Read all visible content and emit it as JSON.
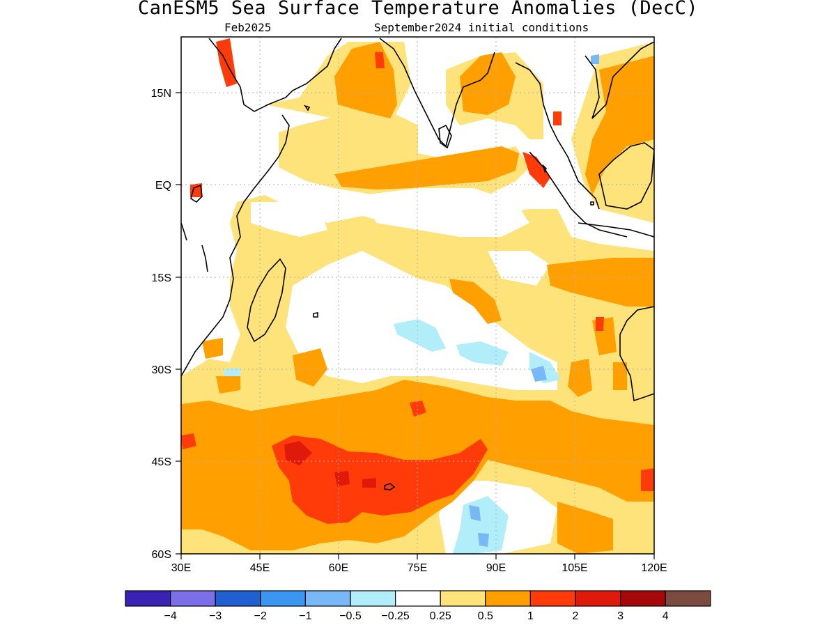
{
  "header": {
    "title": "CanESM5 Sea Surface Temperature Anomalies (DecC)",
    "forecast_month": "Feb2025",
    "init_conditions": "September2024 initial conditions"
  },
  "map": {
    "lon_ticks": [
      "30E",
      "45E",
      "60E",
      "75E",
      "90E",
      "105E",
      "120E"
    ],
    "lat_ticks": [
      "15N",
      "EQ",
      "15S",
      "30S",
      "45S",
      "60S"
    ],
    "lon_range": [
      30,
      120
    ],
    "lat_range": [
      -60,
      24
    ],
    "grid": "dotted"
  },
  "colorbar": {
    "labels": [
      "−4",
      "−3",
      "−2",
      "−1",
      "−0.5",
      "−0.25",
      "0.25",
      "0.5",
      "1",
      "2",
      "3",
      "4"
    ],
    "colors": [
      "#3a22b4",
      "#7b6ee6",
      "#1f5fcf",
      "#3b96f2",
      "#78b8f6",
      "#b2eefa",
      "#ffffff",
      "#fee27a",
      "#ff9f00",
      "#ff3b0a",
      "#e01a0a",
      "#a50808",
      "#7b4b3f"
    ]
  }
}
